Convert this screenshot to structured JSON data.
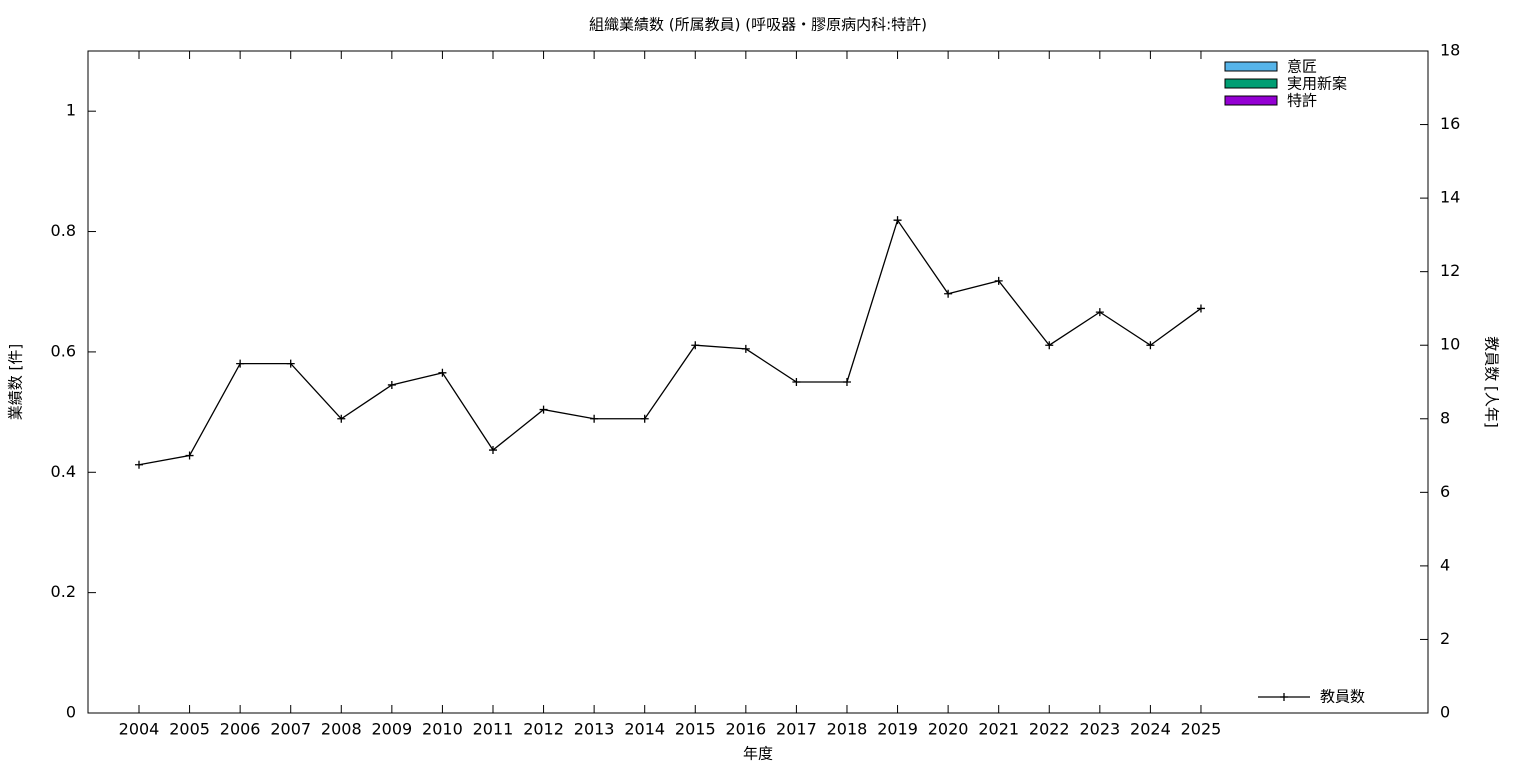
{
  "chart_data": {
    "type": "bar",
    "title": "組織業績数 (所属教員) (呼吸器・膠原病内科:特許)",
    "xlabel": "年度",
    "ylabel": "業績数 [件]",
    "y2label": "教員数 [人年]",
    "categories": [
      "2004",
      "2005",
      "2006",
      "2007",
      "2008",
      "2009",
      "2010",
      "2011",
      "2012",
      "2013",
      "2014",
      "2015",
      "2016",
      "2017",
      "2018",
      "2019",
      "2020",
      "2021",
      "2022",
      "2023",
      "2024",
      "2025"
    ],
    "series": [
      {
        "name": "意匠",
        "color": "#56b4e9",
        "values": [
          0,
          0,
          0,
          0,
          0,
          0,
          0,
          0,
          0,
          0,
          0,
          0,
          0,
          0,
          0,
          0,
          0,
          0,
          0,
          0,
          0,
          0
        ]
      },
      {
        "name": "実用新案",
        "color": "#009e73",
        "values": [
          0,
          0,
          0,
          0,
          0,
          0,
          0,
          0,
          0,
          0,
          0,
          0,
          0,
          0,
          0,
          0,
          0,
          0,
          0,
          0,
          0,
          0
        ]
      },
      {
        "name": "特許",
        "color": "#9400d3",
        "values": [
          0,
          0,
          0,
          0,
          0,
          0,
          0,
          0,
          0,
          0,
          0,
          0,
          0,
          0,
          0,
          0,
          0,
          0,
          0,
          0,
          0,
          0
        ]
      },
      {
        "name": "教員数",
        "color": "#000000",
        "type": "line",
        "axis": "y2",
        "values": [
          6.75,
          7,
          9.5,
          9.5,
          8,
          8.92,
          9.25,
          7.15,
          8.25,
          8,
          8,
          10,
          9.9,
          9,
          9,
          13.4,
          11.4,
          11.75,
          10,
          10.9,
          10,
          11
        ]
      }
    ],
    "ylim": [
      0,
      1.1
    ],
    "yticks": [
      0,
      0.2,
      0.4,
      0.6,
      0.8,
      1
    ],
    "y2lim": [
      0,
      18
    ],
    "y2ticks": [
      0,
      2,
      4,
      6,
      8,
      10,
      12,
      14,
      16,
      18
    ]
  }
}
